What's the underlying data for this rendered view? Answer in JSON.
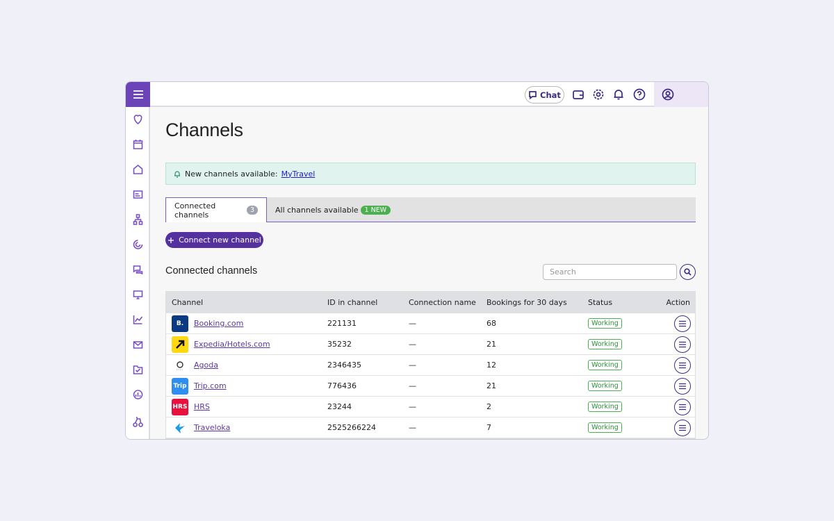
{
  "topbar": {
    "chat": "Chat"
  },
  "page": {
    "title": "Channels"
  },
  "alert": {
    "text": "New channels available:",
    "link": "MyTravel"
  },
  "tabs": [
    {
      "label": "Connected channels",
      "badge": "3"
    },
    {
      "label": "All channels available",
      "badge": "1 NEW"
    }
  ],
  "button": "Connect new channel",
  "section": {
    "title": "Connected channels",
    "search_placeholder": "Search"
  },
  "table": {
    "headers": [
      "Channel",
      "ID in channel",
      "Connection name",
      "Bookings for 30 days",
      "Status",
      "Action"
    ],
    "rows": [
      {
        "logo": "B.",
        "name": "Booking.com",
        "id": "221131",
        "connection": "—",
        "bookings": 68,
        "status": "Working"
      },
      {
        "name": "Expedia/Hotels.com",
        "id": "35232",
        "connection": "—",
        "bookings": 21,
        "status": "Working"
      },
      {
        "name": "Agoda",
        "id": "2346435",
        "connection": "—",
        "bookings": 12,
        "status": "Working"
      },
      {
        "logo": "Trip",
        "name": "Trip.com",
        "id": "776436",
        "connection": "—",
        "bookings": 21,
        "status": "Working"
      },
      {
        "logo": "HRS",
        "name": "HRS",
        "id": "23244",
        "connection": "—",
        "bookings": 2,
        "status": "Working"
      },
      {
        "name": "Traveloka",
        "id": "2525266224",
        "connection": "—",
        "bookings": 7,
        "status": "Working"
      }
    ]
  }
}
